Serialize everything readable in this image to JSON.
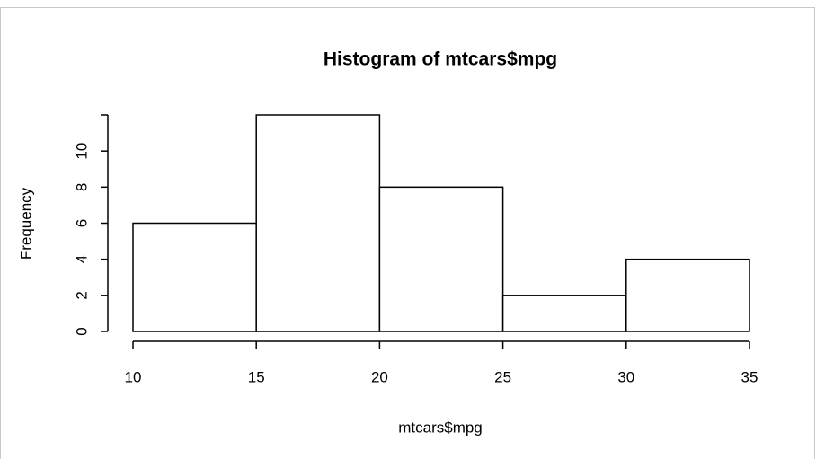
{
  "chart_data": {
    "type": "histogram",
    "title": "Histogram of mtcars$mpg",
    "xlabel": "mtcars$mpg",
    "ylabel": "Frequency",
    "bins": [
      10,
      15,
      20,
      25,
      30,
      35
    ],
    "values": [
      6,
      12,
      8,
      2,
      4
    ],
    "xlim": [
      10,
      35
    ],
    "xticks": [
      10,
      15,
      20,
      25,
      30,
      35
    ],
    "ylim": [
      0,
      12
    ],
    "yticks": [
      0,
      2,
      4,
      6,
      8,
      10
    ],
    "color": "#ffffff",
    "grid": false
  }
}
